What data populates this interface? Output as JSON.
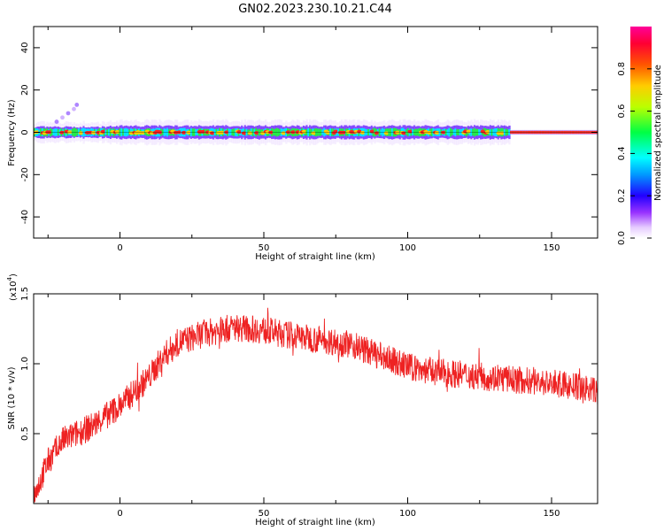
{
  "title": "GN02.2023.230.10.21.C44",
  "chart_data": [
    {
      "type": "heatmap",
      "xlabel": "Height of straight line (km)",
      "ylabel": "Frequency (Hz)",
      "xlim": [
        -30,
        166
      ],
      "ylim": [
        -50,
        50
      ],
      "x_ticks": [
        0,
        50,
        100,
        150
      ],
      "y_ticks": [
        -40,
        -20,
        0,
        20,
        40
      ],
      "grid": false,
      "description_values": {
        "main_band_center_hz": 0,
        "main_band_halfwidth_hz": [
          2,
          5
        ],
        "early_tail_x": [
          -22,
          -20,
          -18,
          -16,
          -15
        ],
        "early_tail_y": [
          5,
          7,
          9,
          11,
          13
        ]
      },
      "colorbar": {
        "label": "Normalized spectral amplitude",
        "range": [
          0.0,
          1.0
        ],
        "ticks": [
          0.0,
          0.2,
          0.4,
          0.6,
          0.8
        ]
      }
    },
    {
      "type": "line",
      "xlabel": "Height of straight line (km)",
      "ylabel": "SNR (10 * v/v)",
      "yscale_label": "(x10",
      "yscale_exp": "4",
      "yscale_close": ")",
      "xlim": [
        -30,
        166
      ],
      "ylim": [
        0,
        1.5
      ],
      "x_ticks": [
        0,
        50,
        100,
        150
      ],
      "y_ticks": [
        0.5,
        1.0,
        1.5
      ],
      "y_tick_labels": [
        "0.5",
        "1.0",
        "1.5"
      ],
      "color": "#ee2222",
      "grid": false,
      "trend_x": [
        -30,
        -25,
        -20,
        -10,
        0,
        10,
        15,
        20,
        30,
        40,
        50,
        60,
        70,
        80,
        90,
        100,
        110,
        120,
        130,
        140,
        150,
        160,
        166
      ],
      "trend_y": [
        0.05,
        0.3,
        0.45,
        0.55,
        0.7,
        0.9,
        1.05,
        1.15,
        1.22,
        1.26,
        1.24,
        1.2,
        1.17,
        1.14,
        1.06,
        0.98,
        0.94,
        0.92,
        0.9,
        0.88,
        0.86,
        0.83,
        0.8
      ],
      "noise_amplitude": 0.1
    }
  ]
}
